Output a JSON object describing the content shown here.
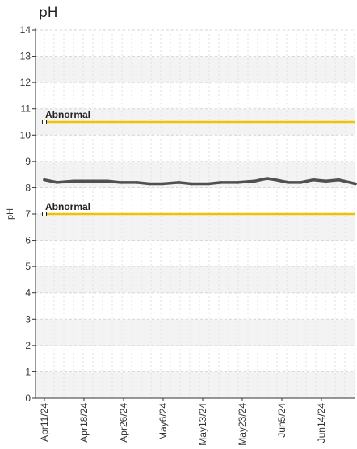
{
  "chart_data": {
    "type": "line",
    "title": "pH",
    "xlabel": "",
    "ylabel": "pH",
    "ylim": [
      0,
      14
    ],
    "yticks": [
      0,
      1,
      2,
      3,
      4,
      5,
      6,
      7,
      8,
      9,
      10,
      11,
      12,
      13,
      14
    ],
    "grid": true,
    "x_tick_labels": [
      "Apr11/24",
      "Apr18/24",
      "Apr26/24",
      "May6/24",
      "May13/24",
      "May23/24",
      "Jun5/24",
      "Jun14/24"
    ],
    "x": [
      "2024-04-11",
      "2024-04-14",
      "2024-04-18",
      "2024-04-22",
      "2024-04-26",
      "2024-04-29",
      "2024-05-03",
      "2024-05-06",
      "2024-05-09",
      "2024-05-13",
      "2024-05-16",
      "2024-05-20",
      "2024-05-23",
      "2024-05-27",
      "2024-05-31",
      "2024-06-03",
      "2024-06-05",
      "2024-06-08",
      "2024-06-11",
      "2024-06-14",
      "2024-06-17",
      "2024-06-20",
      "2024-06-24"
    ],
    "series": [
      {
        "color": "#505050",
        "values": [
          8.3,
          8.2,
          8.25,
          8.25,
          8.25,
          8.2,
          8.2,
          8.15,
          8.15,
          8.2,
          8.15,
          8.15,
          8.2,
          8.2,
          8.25,
          8.35,
          8.3,
          8.2,
          8.2,
          8.3,
          8.25,
          8.3,
          8.15
        ]
      }
    ],
    "reference_lines": [
      {
        "label": "Abnormal",
        "y": 10.5,
        "color": "#f2c200"
      },
      {
        "label": "Abnormal",
        "y": 7.0,
        "color": "#f2c200"
      }
    ]
  }
}
